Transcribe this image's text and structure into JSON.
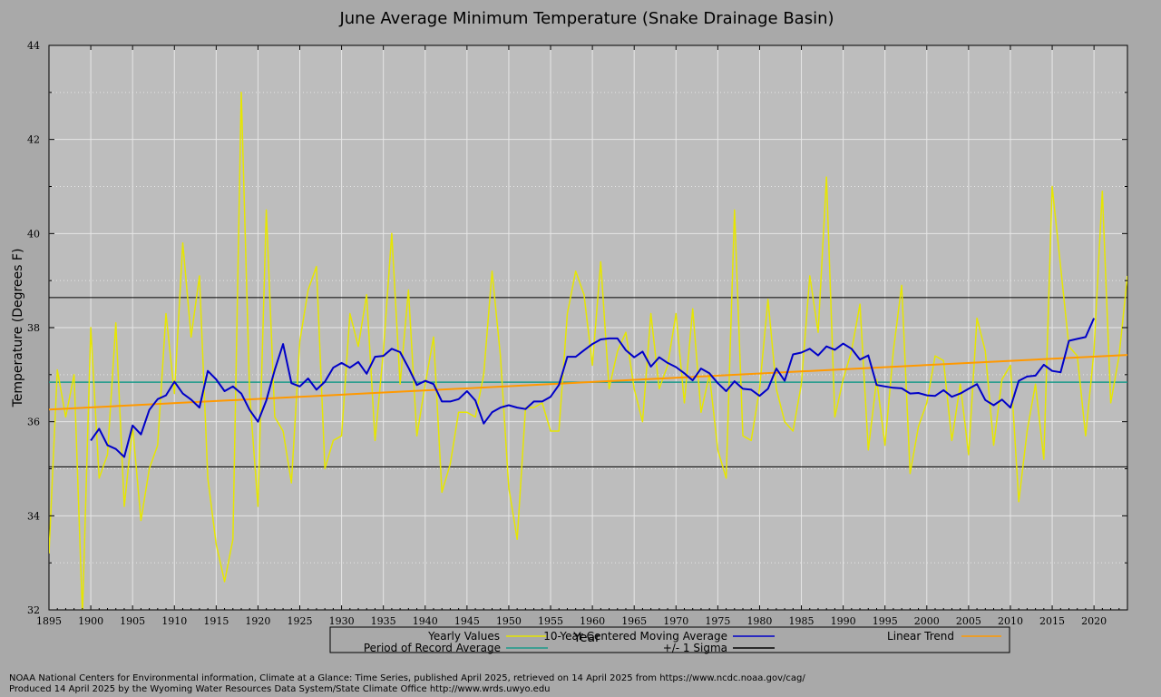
{
  "chart_data": {
    "type": "line",
    "title": "June Average Minimum Temperature (Snake Drainage Basin)",
    "xlabel": "Year",
    "ylabel": "Temperature (Degrees F)",
    "xlim": [
      1895,
      2024
    ],
    "ylim": [
      32,
      44
    ],
    "x_ticks": [
      1895,
      1900,
      1905,
      1910,
      1915,
      1920,
      1925,
      1930,
      1935,
      1940,
      1945,
      1950,
      1955,
      1960,
      1965,
      1970,
      1975,
      1980,
      1985,
      1990,
      1995,
      2000,
      2005,
      2010,
      2015,
      2020
    ],
    "y_ticks": [
      32,
      34,
      36,
      38,
      40,
      42,
      44
    ],
    "grid": true,
    "legend_position": "bottom",
    "series": [
      {
        "name": "Yearly Values",
        "color": "#e6e600",
        "x_start": 1895,
        "values": [
          33.2,
          37.1,
          36.1,
          37.0,
          31.9,
          38.0,
          34.8,
          35.3,
          38.1,
          34.2,
          35.9,
          33.9,
          35.0,
          35.5,
          38.3,
          36.6,
          39.8,
          37.8,
          39.1,
          34.8,
          33.4,
          32.6,
          33.5,
          43.0,
          36.6,
          34.2,
          40.5,
          36.1,
          35.8,
          34.7,
          37.7,
          38.8,
          39.3,
          35.0,
          35.6,
          35.7,
          38.3,
          37.6,
          38.7,
          35.6,
          37.5,
          40.0,
          36.8,
          38.8,
          35.7,
          36.8,
          37.8,
          34.5,
          35.1,
          36.2,
          36.2,
          36.1,
          37.0,
          39.2,
          37.4,
          34.6,
          33.5,
          36.3,
          36.3,
          36.4,
          35.8,
          35.8,
          38.3,
          39.2,
          38.7,
          37.2,
          39.4,
          36.7,
          37.5,
          37.9,
          36.7,
          36.0,
          38.3,
          36.7,
          37.2,
          38.3,
          36.4,
          38.4,
          36.2,
          37.0,
          35.4,
          34.8,
          40.5,
          35.7,
          35.6,
          36.7,
          38.6,
          36.7,
          36.0,
          35.8,
          36.8,
          39.1,
          37.9,
          41.2,
          36.1,
          36.9,
          37.5,
          38.5,
          35.4,
          36.9,
          35.5,
          37.5,
          38.9,
          34.9,
          35.9,
          36.4,
          37.4,
          37.3,
          35.6,
          36.8,
          35.3,
          38.2,
          37.5,
          35.5,
          36.9,
          37.2,
          34.3,
          35.8,
          36.8,
          35.2,
          41.0,
          39.3,
          37.6,
          37.4,
          35.7,
          37.5,
          40.9,
          36.4,
          37.4,
          39.1
        ]
      },
      {
        "name": "10-Year Centered Moving Average",
        "color": "#0000c8",
        "x_start": 1900,
        "values": [
          35.6,
          35.85,
          35.5,
          35.42,
          35.25,
          35.92,
          35.73,
          36.25,
          36.48,
          36.56,
          36.85,
          36.6,
          36.47,
          36.3,
          37.08,
          36.9,
          36.65,
          36.75,
          36.6,
          36.25,
          36.0,
          36.45,
          37.1,
          37.65,
          36.82,
          36.75,
          36.92,
          36.68,
          36.85,
          37.15,
          37.25,
          37.15,
          37.27,
          37.02,
          37.38,
          37.4,
          37.55,
          37.48,
          37.15,
          36.78,
          36.87,
          36.8,
          36.43,
          36.43,
          36.48,
          36.65,
          36.45,
          35.96,
          36.2,
          36.3,
          36.35,
          36.3,
          36.27,
          36.43,
          36.43,
          36.53,
          36.78,
          37.38,
          37.38,
          37.52,
          37.65,
          37.75,
          37.77,
          37.77,
          37.52,
          37.37,
          37.49,
          37.17,
          37.37,
          37.25,
          37.16,
          37.03,
          36.88,
          37.13,
          37.03,
          36.82,
          36.65,
          36.86,
          36.7,
          36.68,
          36.55,
          36.7,
          37.13,
          36.87,
          37.43,
          37.47,
          37.55,
          37.41,
          37.6,
          37.53,
          37.66,
          37.55,
          37.32,
          37.41,
          36.78,
          36.75,
          36.72,
          36.71,
          36.6,
          36.61,
          36.56,
          36.55,
          36.67,
          36.53,
          36.6,
          36.7,
          36.8,
          36.46,
          36.35,
          36.47,
          36.3,
          36.87,
          36.96,
          36.98,
          37.21,
          37.08,
          37.05,
          37.72,
          37.76,
          37.8,
          38.2
        ]
      },
      {
        "name": "Linear Trend",
        "color": "#ff9900",
        "x": [
          1895,
          2024
        ],
        "values": [
          36.26,
          37.42
        ]
      },
      {
        "name": "Period of Record Average",
        "color": "#1a9a8a",
        "x": [
          1895,
          2024
        ],
        "values": [
          36.84,
          36.84
        ]
      },
      {
        "name": "+/- 1 Sigma",
        "color": "#000000",
        "upper": 38.64,
        "lower": 35.04
      }
    ]
  },
  "footer": {
    "line1": "NOAA National Centers for Environmental information, Climate at a Glance: Time Series, published April 2025, retrieved on 14 April 2025 from https://www.ncdc.noaa.gov/cag/",
    "line2": "Produced 14 April 2025 by the Wyoming Water Resources Data System/State Climate Office http://www.wrds.uwyo.edu"
  }
}
